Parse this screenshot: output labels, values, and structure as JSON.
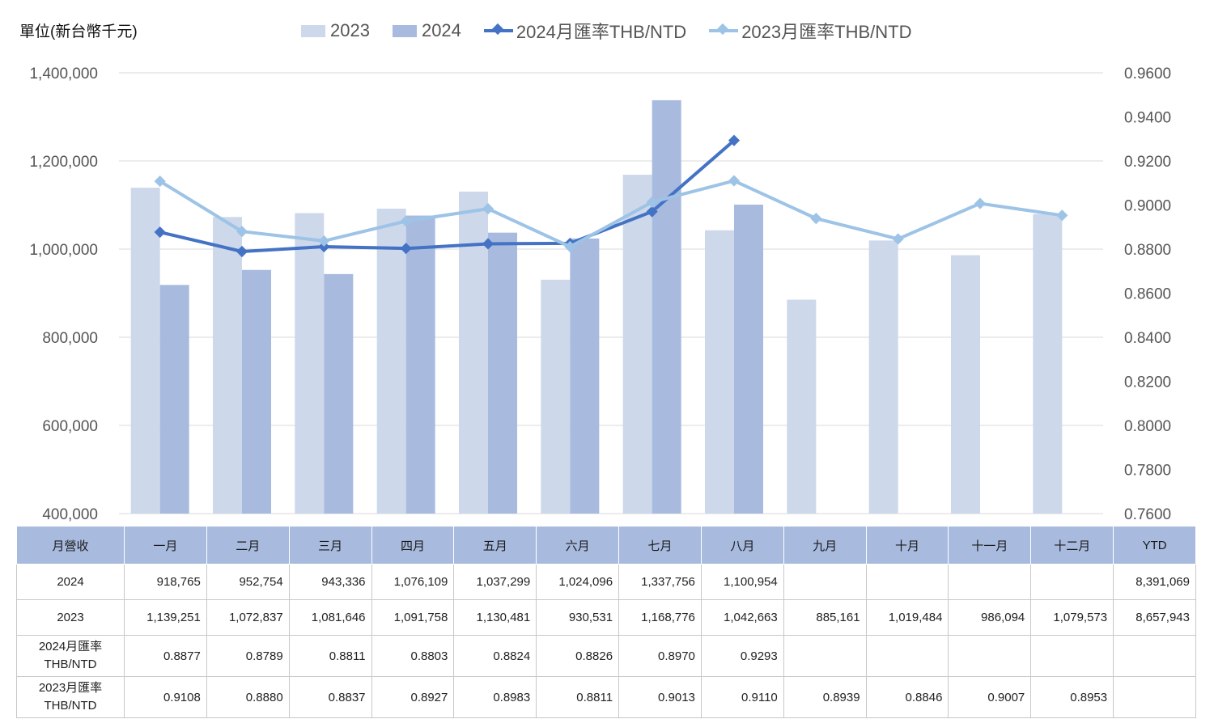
{
  "unit_label": "單位(新台幣千元)",
  "legend": {
    "bar2023": "2023",
    "bar2024": "2024",
    "line2024": "2024月匯率THB/NTD",
    "line2023": "2023月匯率THB/NTD"
  },
  "colors": {
    "bar2023": "#cdd8ea",
    "bar2024": "#a8bbdf",
    "line2024": "#4472c4",
    "line2023": "#9dc3e6",
    "grid": "#d9d9d9",
    "header": "#a8bbdf"
  },
  "chart_data": {
    "type": "bar",
    "categories": [
      "一月",
      "二月",
      "三月",
      "四月",
      "五月",
      "六月",
      "七月",
      "八月",
      "九月",
      "十月",
      "十一月",
      "十二月"
    ],
    "series": [
      {
        "name": "2023",
        "kind": "bar",
        "axis": "left",
        "values": [
          1139251,
          1072837,
          1081646,
          1091758,
          1130481,
          930531,
          1168776,
          1042663,
          885161,
          1019484,
          986094,
          1079573
        ]
      },
      {
        "name": "2024",
        "kind": "bar",
        "axis": "left",
        "values": [
          918765,
          952754,
          943336,
          1076109,
          1037299,
          1024096,
          1337756,
          1100954,
          null,
          null,
          null,
          null
        ]
      },
      {
        "name": "2024月匯率THB/NTD",
        "kind": "line",
        "axis": "right",
        "values": [
          0.8877,
          0.8789,
          0.8811,
          0.8803,
          0.8824,
          0.8826,
          0.897,
          0.9293,
          null,
          null,
          null,
          null
        ]
      },
      {
        "name": "2023月匯率THB/NTD",
        "kind": "line",
        "axis": "right",
        "values": [
          0.9108,
          0.888,
          0.8837,
          0.8927,
          0.8983,
          0.8811,
          0.9013,
          0.911,
          0.8939,
          0.8846,
          0.9007,
          0.8953
        ]
      }
    ],
    "ylim_left": [
      400000,
      1400000
    ],
    "yticks_left": [
      "400,000",
      "600,000",
      "800,000",
      "1,000,000",
      "1,200,000",
      "1,400,000"
    ],
    "ylim_right": [
      0.76,
      0.96
    ],
    "yticks_right": [
      "0.7600",
      "0.7800",
      "0.8000",
      "0.8200",
      "0.8400",
      "0.8600",
      "0.8800",
      "0.9000",
      "0.9200",
      "0.9400",
      "0.9600"
    ],
    "grid": true,
    "legend_position": "top"
  },
  "table": {
    "header": [
      "月營收",
      "一月",
      "二月",
      "三月",
      "四月",
      "五月",
      "六月",
      "七月",
      "八月",
      "九月",
      "十月",
      "十一月",
      "十二月",
      "YTD"
    ],
    "rows": [
      {
        "label": "2024",
        "cells": [
          "918,765",
          "952,754",
          "943,336",
          "1,076,109",
          "1,037,299",
          "1,024,096",
          "1,337,756",
          "1,100,954",
          "",
          "",
          "",
          "",
          "8,391,069"
        ]
      },
      {
        "label": "2023",
        "cells": [
          "1,139,251",
          "1,072,837",
          "1,081,646",
          "1,091,758",
          "1,130,481",
          "930,531",
          "1,168,776",
          "1,042,663",
          "885,161",
          "1,019,484",
          "986,094",
          "1,079,573",
          "8,657,943"
        ]
      },
      {
        "label": "2024月匯率THB/NTD",
        "label_lines": [
          "2024月匯率",
          "THB/NTD"
        ],
        "cells": [
          "0.8877",
          "0.8789",
          "0.8811",
          "0.8803",
          "0.8824",
          "0.8826",
          "0.8970",
          "0.9293",
          "",
          "",
          "",
          "",
          ""
        ]
      },
      {
        "label": "2023月匯率THB/NTD",
        "label_lines": [
          "2023月匯率",
          "THB/NTD"
        ],
        "cells": [
          "0.9108",
          "0.8880",
          "0.8837",
          "0.8927",
          "0.8983",
          "0.8811",
          "0.9013",
          "0.9110",
          "0.8939",
          "0.8846",
          "0.9007",
          "0.8953",
          ""
        ]
      }
    ]
  }
}
